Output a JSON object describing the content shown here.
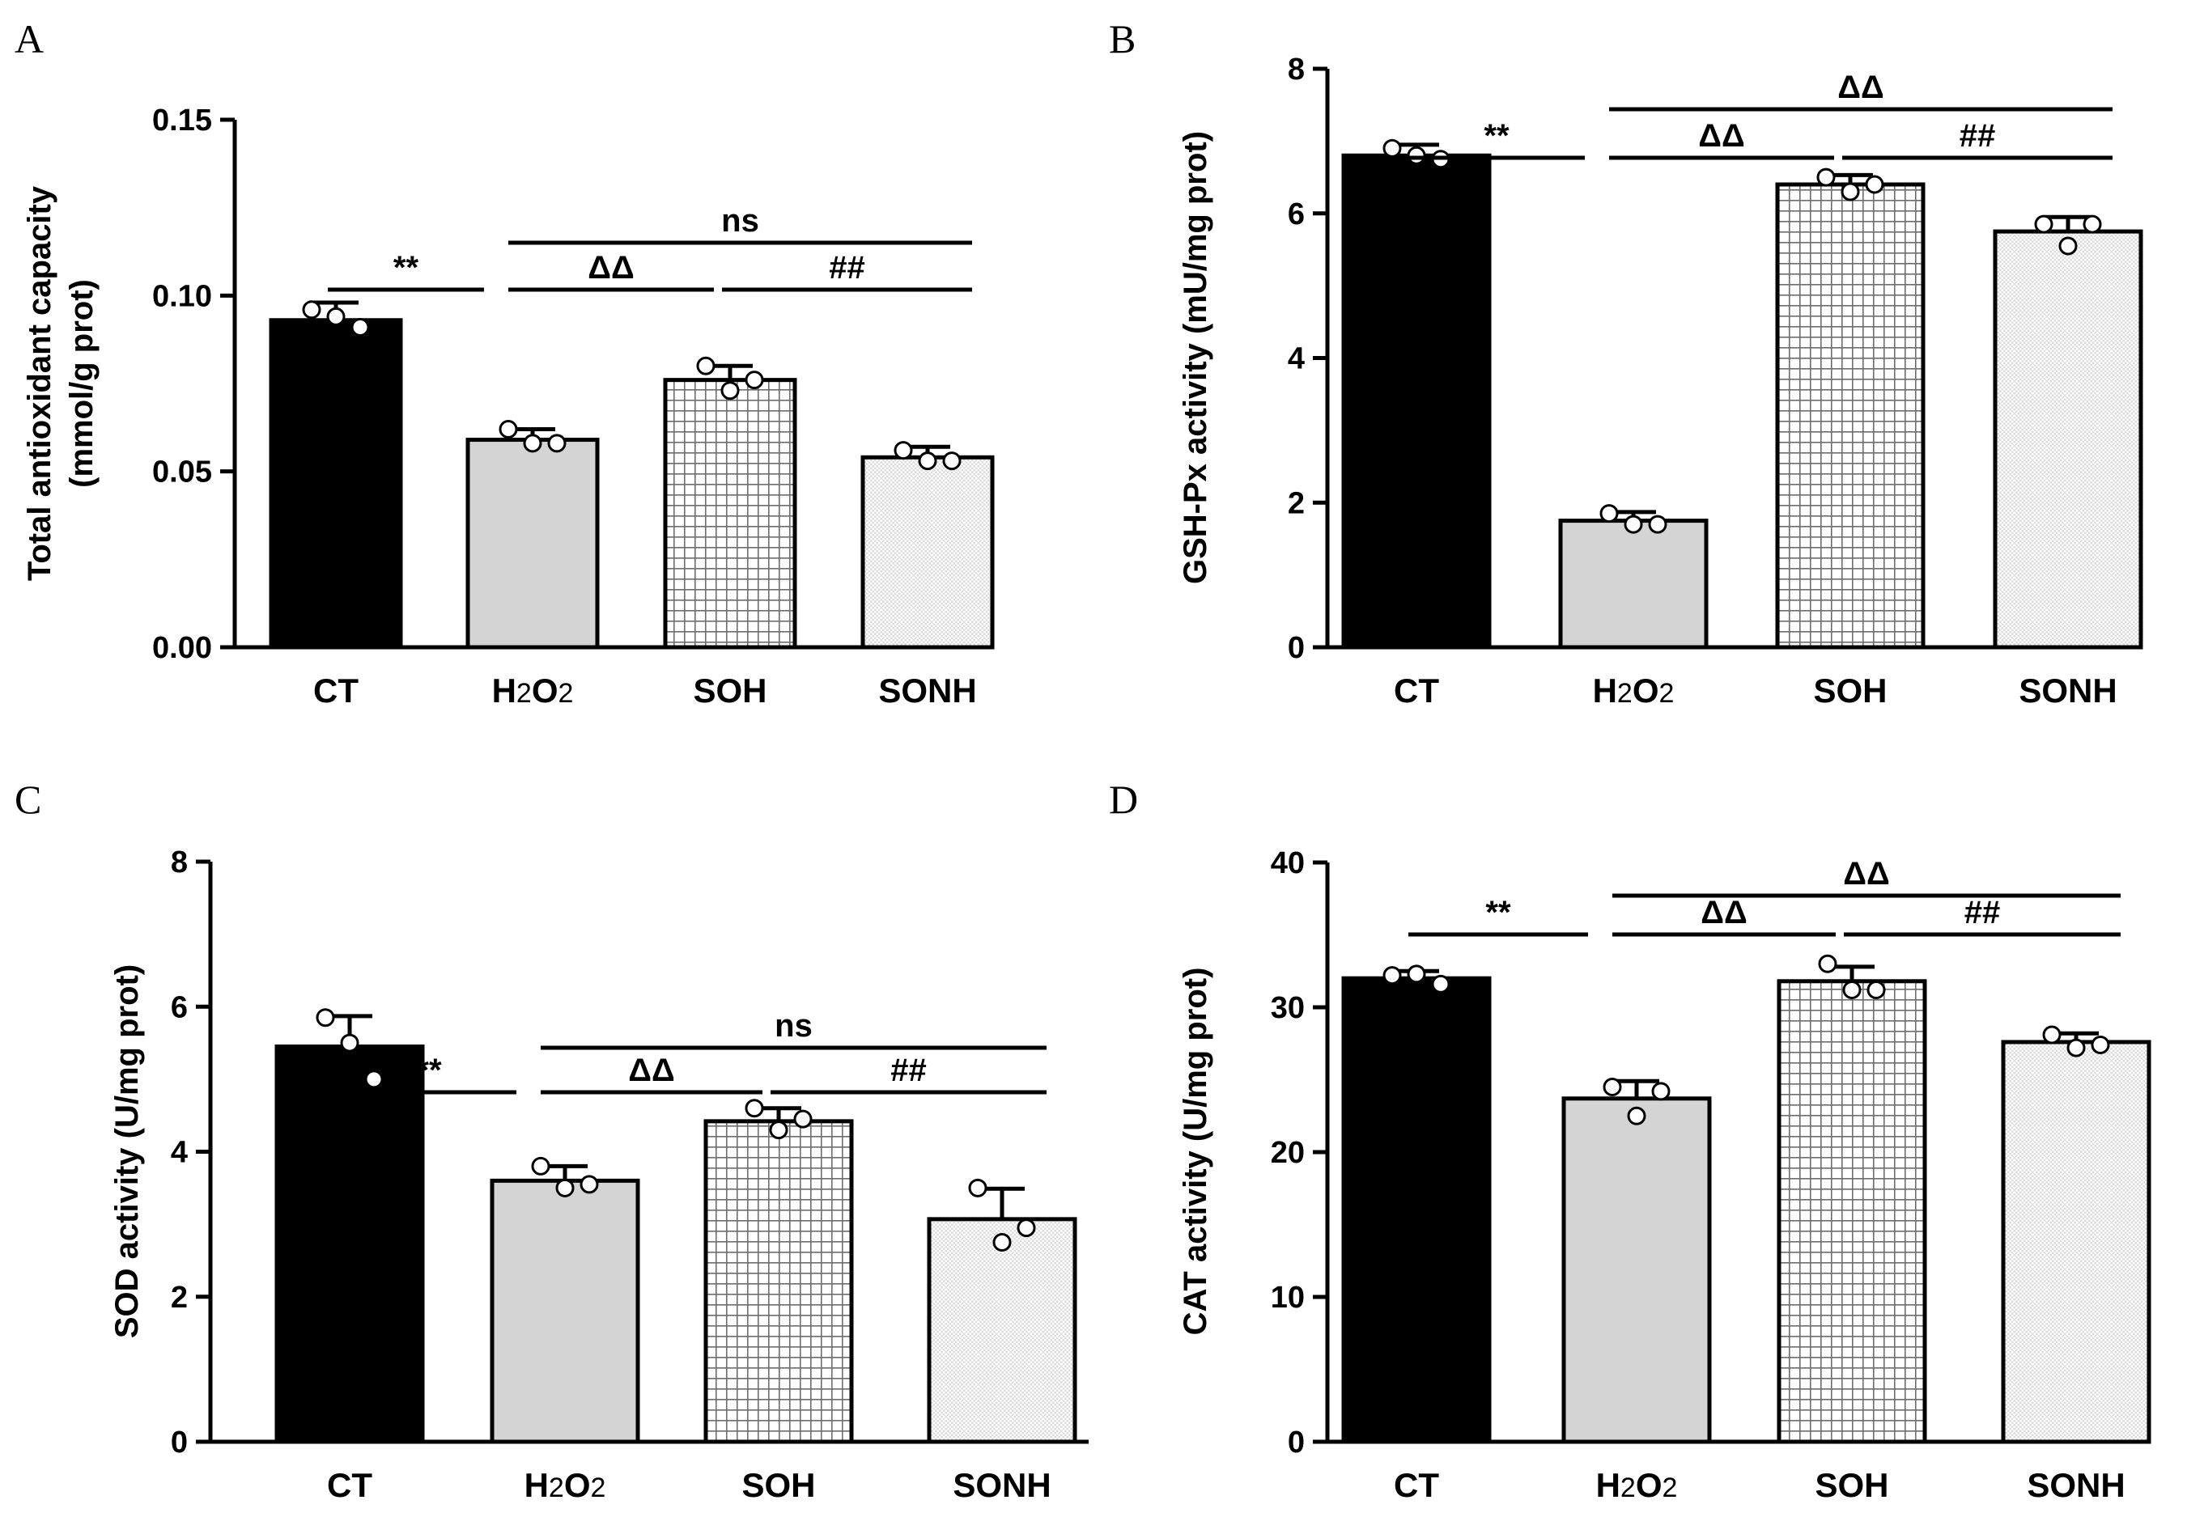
{
  "chart_data": [
    {
      "type": "bar",
      "panel": "A",
      "title": "",
      "xlabel": "",
      "ylabel": "Total antioxidant capacity\n(mmol/g prot)",
      "categories": [
        "CT",
        "H2O2",
        "SOH",
        "SONH"
      ],
      "values": [
        0.093,
        0.059,
        0.076,
        0.054
      ],
      "errors": [
        0.005,
        0.003,
        0.004,
        0.003
      ],
      "points": [
        [
          0.096,
          0.094,
          0.091
        ],
        [
          0.062,
          0.058,
          0.058
        ],
        [
          0.08,
          0.073,
          0.076
        ],
        [
          0.056,
          0.053,
          0.053
        ]
      ],
      "ylim": [
        0,
        0.15
      ],
      "yticks": [
        0,
        0.05,
        0.1,
        0.15
      ],
      "ytick_labels": [
        "0.00",
        "0.05",
        "0.10",
        "0.15"
      ],
      "significance": [
        {
          "from": 0,
          "to": 1,
          "label": "**",
          "level": 0
        },
        {
          "from": 1,
          "to": 3,
          "label": "ns",
          "level": 1
        },
        {
          "from": 1,
          "to": 2,
          "label": "ΔΔ",
          "level": 0
        },
        {
          "from": 2,
          "to": 3,
          "label": "##",
          "level": 0
        }
      ]
    },
    {
      "type": "bar",
      "panel": "B",
      "title": "",
      "xlabel": "",
      "ylabel": "GSH-Px activity (mU/mg prot)",
      "categories": [
        "CT",
        "H2O2",
        "SOH",
        "SONH"
      ],
      "values": [
        6.8,
        1.75,
        6.4,
        5.75
      ],
      "errors": [
        0.15,
        0.12,
        0.13,
        0.2
      ],
      "points": [
        [
          6.9,
          6.8,
          6.75
        ],
        [
          1.85,
          1.7,
          1.7
        ],
        [
          6.5,
          6.3,
          6.4
        ],
        [
          5.85,
          5.55,
          5.85
        ]
      ],
      "ylim": [
        0,
        8
      ],
      "yticks": [
        0,
        2,
        4,
        6,
        8
      ],
      "ytick_labels": [
        "0",
        "2",
        "4",
        "6",
        "8"
      ],
      "significance": [
        {
          "from": 0,
          "to": 1,
          "label": "**",
          "level": 0
        },
        {
          "from": 1,
          "to": 3,
          "label": "ΔΔ",
          "level": 1
        },
        {
          "from": 1,
          "to": 2,
          "label": "ΔΔ",
          "level": 0
        },
        {
          "from": 2,
          "to": 3,
          "label": "##",
          "level": 0
        }
      ]
    },
    {
      "type": "bar",
      "panel": "C",
      "title": "",
      "xlabel": "",
      "ylabel": "SOD activity (U/mg prot)",
      "categories": [
        "CT",
        "H2O2",
        "SOH",
        "SONH"
      ],
      "values": [
        5.45,
        3.6,
        4.42,
        3.07
      ],
      "errors": [
        0.42,
        0.2,
        0.18,
        0.42
      ],
      "points": [
        [
          5.85,
          5.5,
          5.0
        ],
        [
          3.8,
          3.5,
          3.55
        ],
        [
          4.6,
          4.3,
          4.45
        ],
        [
          3.5,
          2.75,
          2.95
        ]
      ],
      "ylim": [
        0,
        8
      ],
      "yticks": [
        0,
        2,
        4,
        6,
        8
      ],
      "ytick_labels": [
        "0",
        "2",
        "4",
        "6",
        "8"
      ],
      "significance": [
        {
          "from": 0,
          "to": 1,
          "label": "**",
          "level": 0
        },
        {
          "from": 1,
          "to": 3,
          "label": "ns",
          "level": 1
        },
        {
          "from": 1,
          "to": 2,
          "label": "ΔΔ",
          "level": 0
        },
        {
          "from": 2,
          "to": 3,
          "label": "##",
          "level": 0
        }
      ]
    },
    {
      "type": "bar",
      "panel": "D",
      "title": "",
      "xlabel": "",
      "ylabel": "CAT activity (U/mg prot)",
      "categories": [
        "CT",
        "H2O2",
        "SOH",
        "SONH"
      ],
      "values": [
        32.0,
        23.7,
        31.8,
        27.6
      ],
      "errors": [
        0.5,
        1.2,
        1.0,
        0.6
      ],
      "points": [
        [
          32.2,
          32.3,
          31.6
        ],
        [
          24.5,
          22.5,
          24.2
        ],
        [
          33.0,
          31.2,
          31.2
        ],
        [
          28.1,
          27.2,
          27.4
        ]
      ],
      "ylim": [
        0,
        40
      ],
      "yticks": [
        0,
        10,
        20,
        30,
        40
      ],
      "ytick_labels": [
        "0",
        "10",
        "20",
        "30",
        "40"
      ],
      "significance": [
        {
          "from": 0,
          "to": 1,
          "label": "**",
          "level": 0
        },
        {
          "from": 1,
          "to": 3,
          "label": "ΔΔ",
          "level": 1
        },
        {
          "from": 1,
          "to": 2,
          "label": "ΔΔ",
          "level": 0
        },
        {
          "from": 2,
          "to": 3,
          "label": "##",
          "level": 0
        }
      ]
    }
  ]
}
